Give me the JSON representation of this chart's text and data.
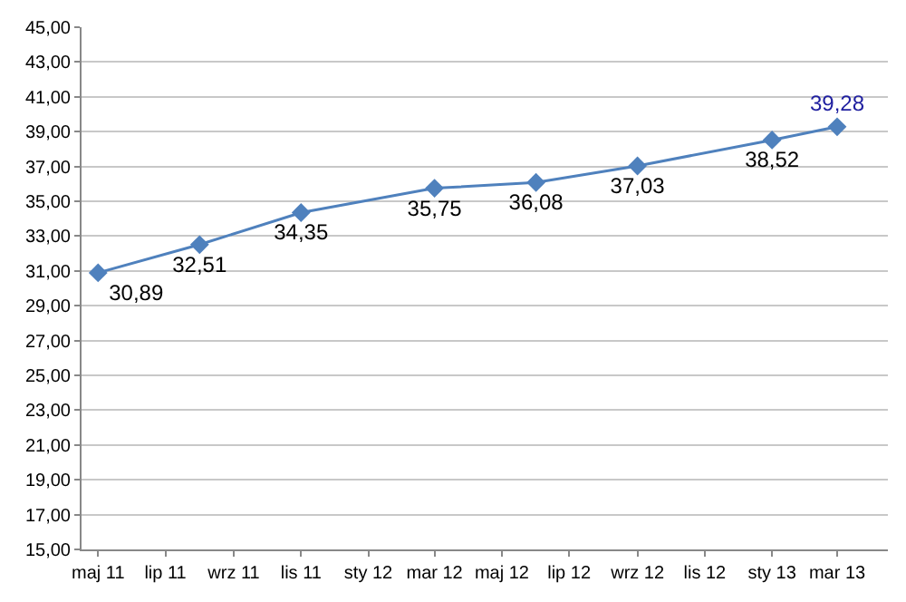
{
  "chart_data": {
    "type": "line",
    "x": [
      "2011-05-01",
      "2011-08-01",
      "2011-11-01",
      "2012-03-01",
      "2012-06-01",
      "2012-09-01",
      "2013-01-01",
      "2013-03-01"
    ],
    "series": [
      {
        "color": "#4f81bd",
        "values": [
          30.89,
          32.51,
          34.35,
          35.75,
          36.08,
          37.03,
          38.52,
          39.28
        ],
        "value_labels": [
          "30,89",
          "32,51",
          "34,35",
          "35,75",
          "36,08",
          "37,03",
          "38,52",
          "39,28"
        ]
      }
    ],
    "xlim": [
      "2011-04-16",
      "2013-04-16"
    ],
    "xticks": [
      {
        "value": "2011-05-01",
        "label": "maj 11"
      },
      {
        "value": "2011-07-01",
        "label": "lip 11"
      },
      {
        "value": "2011-09-01",
        "label": "wrz 11"
      },
      {
        "value": "2011-11-01",
        "label": "lis 11"
      },
      {
        "value": "2012-01-01",
        "label": "sty 12"
      },
      {
        "value": "2012-03-01",
        "label": "mar 12"
      },
      {
        "value": "2012-05-01",
        "label": "maj 12"
      },
      {
        "value": "2012-07-01",
        "label": "lip 12"
      },
      {
        "value": "2012-09-01",
        "label": "wrz 12"
      },
      {
        "value": "2012-11-01",
        "label": "lis 12"
      },
      {
        "value": "2013-01-01",
        "label": "sty 13"
      },
      {
        "value": "2013-03-01",
        "label": "mar 13"
      }
    ],
    "ylim": [
      15,
      45
    ],
    "yticks": [
      {
        "value": 15,
        "label": "15,00"
      },
      {
        "value": 17,
        "label": "17,00"
      },
      {
        "value": 19,
        "label": "19,00"
      },
      {
        "value": 21,
        "label": "21,00"
      },
      {
        "value": 23,
        "label": "23,00"
      },
      {
        "value": 25,
        "label": "25,00"
      },
      {
        "value": 27,
        "label": "27,00"
      },
      {
        "value": 29,
        "label": "29,00"
      },
      {
        "value": 31,
        "label": "31,00"
      },
      {
        "value": 33,
        "label": "33,00"
      },
      {
        "value": 35,
        "label": "35,00"
      },
      {
        "value": 37,
        "label": "37,00"
      },
      {
        "value": 39,
        "label": "39,00"
      },
      {
        "value": 41,
        "label": "41,00"
      },
      {
        "value": 43,
        "label": "43,00"
      },
      {
        "value": 45,
        "label": "45,00"
      }
    ],
    "grid": "y",
    "marker": "diamond",
    "line_style": "solid"
  }
}
